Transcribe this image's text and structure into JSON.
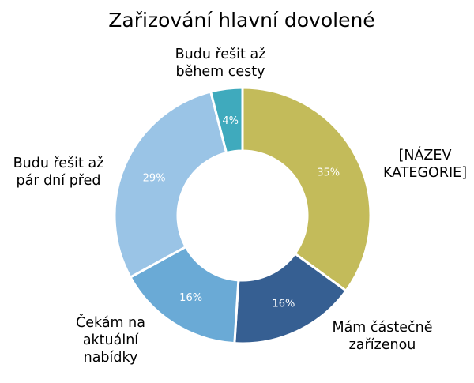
{
  "chart_data": {
    "type": "pie",
    "donut": true,
    "title": "Zařizování hlavní dovolené",
    "slices": [
      {
        "label": [
          "[NÁZEV",
          "KATEGORIE]"
        ],
        "value": 35,
        "value_label": "35%",
        "color": "#c3bb5a"
      },
      {
        "label": [
          "Mám částečně",
          "zařízenou"
        ],
        "value": 16,
        "value_label": "16%",
        "color": "#365f92"
      },
      {
        "label": [
          "Čekám na",
          "aktuální",
          "nabídky"
        ],
        "value": 16,
        "value_label": "16%",
        "color": "#6aaad6"
      },
      {
        "label": [
          "Budu řešit až",
          "pár dní před"
        ],
        "value": 29,
        "value_label": "29%",
        "color": "#9ac4e6"
      },
      {
        "label": [
          "Budu řešit až",
          "během cesty"
        ],
        "value": 4,
        "value_label": "4%",
        "color": "#3faabd"
      }
    ]
  }
}
